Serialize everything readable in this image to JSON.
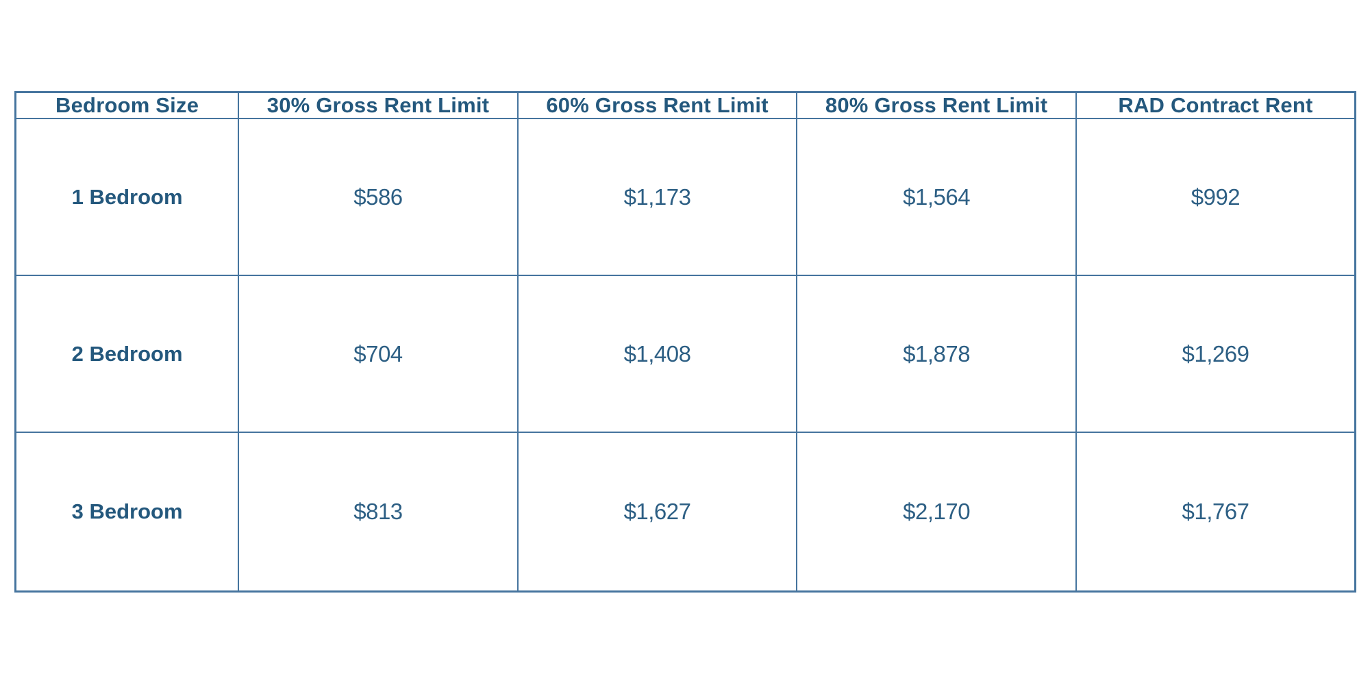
{
  "colors": {
    "page_background": "#ffffff",
    "table_border": "#45749e",
    "header_text": "#24587d",
    "value_text": "#2d5f84"
  },
  "table": {
    "headers": [
      "Bedroom Size",
      "30% Gross Rent Limit",
      "60% Gross Rent Limit",
      "80% Gross Rent Limit",
      "RAD Contract Rent"
    ],
    "rows": [
      {
        "label": "1 Bedroom",
        "values": [
          "$586",
          "$1,173",
          "$1,564",
          "$992"
        ]
      },
      {
        "label": "2 Bedroom",
        "values": [
          "$704",
          "$1,408",
          "$1,878",
          "$1,269"
        ]
      },
      {
        "label": "3 Bedroom",
        "values": [
          "$813",
          "$1,627",
          "$2,170",
          "$1,767"
        ]
      }
    ]
  },
  "chart_data": {
    "type": "table",
    "columns": [
      "Bedroom Size",
      "30% Gross Rent Limit",
      "60% Gross Rent Limit",
      "80% Gross Rent Limit",
      "RAD Contract Rent"
    ],
    "rows": [
      [
        "1 Bedroom",
        586,
        1173,
        1564,
        992
      ],
      [
        "2 Bedroom",
        704,
        1408,
        1878,
        1269
      ],
      [
        "3 Bedroom",
        813,
        1627,
        2170,
        1767
      ]
    ]
  }
}
